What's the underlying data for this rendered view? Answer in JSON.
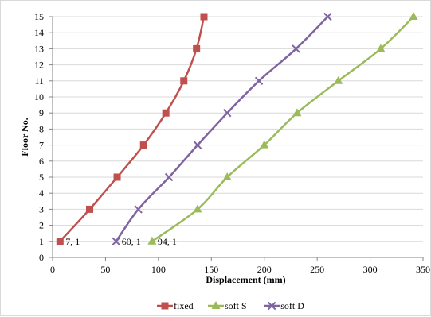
{
  "chart_data": {
    "type": "line",
    "xlabel": "Displacement (mm)",
    "ylabel": "Floor No.",
    "xlim": [
      0,
      350
    ],
    "ylim": [
      0,
      15
    ],
    "x_ticks": [
      "0",
      "50",
      "100",
      "150",
      "200",
      "250",
      "300",
      "350"
    ],
    "y_ticks": [
      "0",
      "1",
      "2",
      "3",
      "4",
      "5",
      "6",
      "7",
      "8",
      "9",
      "10",
      "11",
      "12",
      "13",
      "14",
      "15"
    ],
    "grid": "horizontal",
    "legend_position": "bottom",
    "series": [
      {
        "name": "fixed",
        "color": "#c0504d",
        "marker": "square",
        "points": [
          [
            7,
            1
          ],
          [
            35,
            3
          ],
          [
            61,
            5
          ],
          [
            86,
            7
          ],
          [
            107,
            9
          ],
          [
            124,
            11
          ],
          [
            136,
            13
          ],
          [
            143,
            15
          ]
        ]
      },
      {
        "name": "soft S",
        "color": "#9bbb59",
        "marker": "triangle",
        "points": [
          [
            94,
            1
          ],
          [
            137,
            3
          ],
          [
            165,
            5
          ],
          [
            200,
            7
          ],
          [
            231,
            9
          ],
          [
            270,
            11
          ],
          [
            310,
            13
          ],
          [
            341,
            15
          ]
        ]
      },
      {
        "name": "soft D",
        "color": "#8064a2",
        "marker": "x",
        "points": [
          [
            60,
            1
          ],
          [
            81,
            3
          ],
          [
            110,
            5
          ],
          [
            137,
            7
          ],
          [
            165,
            9
          ],
          [
            195,
            11
          ],
          [
            230,
            13
          ],
          [
            260,
            15
          ]
        ]
      }
    ],
    "data_labels": [
      {
        "series": "fixed",
        "x": 7,
        "y": 1,
        "text": "7, 1"
      },
      {
        "series": "soft D",
        "x": 60,
        "y": 1,
        "text": "60, 1"
      },
      {
        "series": "soft S",
        "x": 94,
        "y": 1,
        "text": "94, 1"
      }
    ]
  }
}
